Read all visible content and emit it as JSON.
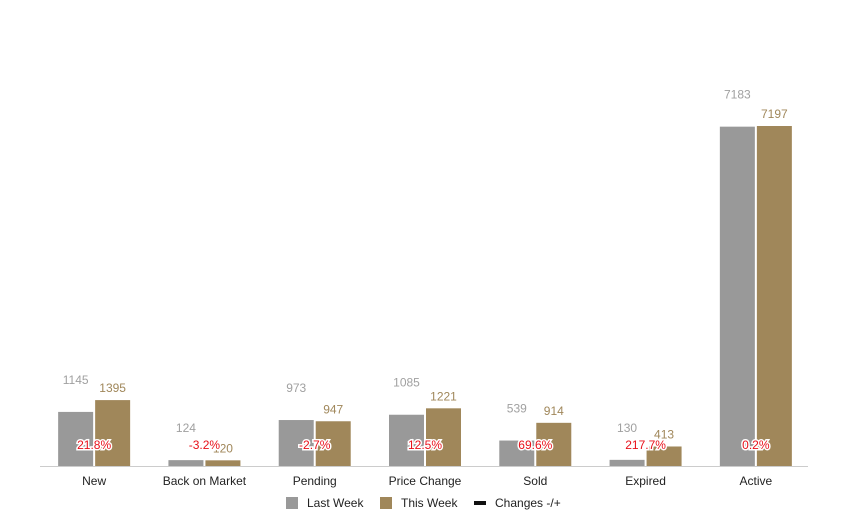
{
  "chart_data": {
    "type": "bar",
    "categories": [
      "New",
      "Back on Market",
      "Pending",
      "Price Change",
      "Sold",
      "Expired",
      "Active"
    ],
    "series": [
      {
        "name": "Last Week",
        "color": "#999999",
        "label_color": "#a0a0a0",
        "values": [
          1145,
          124,
          973,
          1085,
          539,
          130,
          7183
        ]
      },
      {
        "name": "This Week",
        "color": "#a0875a",
        "label_color": "#a0875a",
        "values": [
          1395,
          120,
          947,
          1221,
          914,
          413,
          7197
        ]
      }
    ],
    "value_labels": {
      "Last Week": [
        "1145",
        "124",
        "973",
        "1085",
        "539",
        "130",
        "7183"
      ],
      "This Week": [
        "1395",
        "120",
        "947",
        "1221",
        "914",
        "413",
        "7197"
      ]
    },
    "changes": {
      "name": "Changes -/+",
      "color": "#e8101a",
      "labels": [
        "21.8%",
        "-3.2%",
        "-2.7%",
        "12.5%",
        "69.6%",
        "217.7%",
        "0.2%"
      ]
    },
    "legend": {
      "position": "bottom",
      "line_color": "#111111"
    },
    "title": "",
    "xlabel": "",
    "ylabel": "",
    "ylim": [
      0,
      7500
    ],
    "grid": false
  }
}
